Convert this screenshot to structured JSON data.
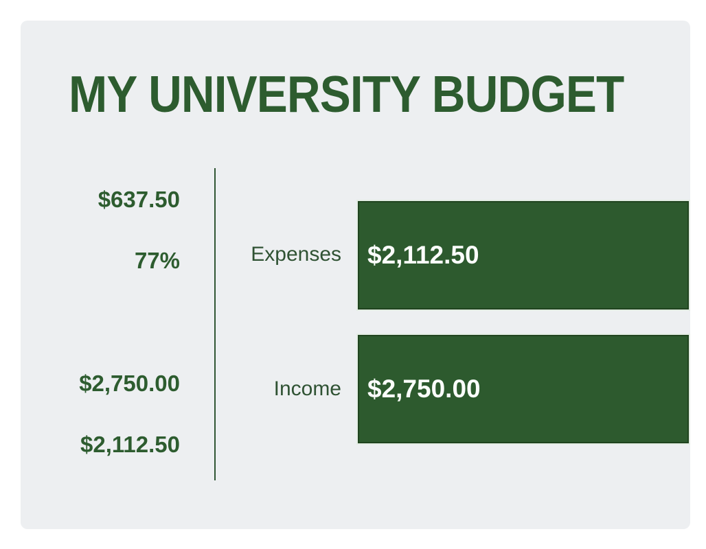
{
  "page": {
    "title": "MY UNIVERSITY BUDGET"
  },
  "stats": {
    "values": [
      "$637.50",
      "77%",
      "$2,750.00",
      "$2,112.50"
    ]
  },
  "chart_data": {
    "type": "bar",
    "orientation": "horizontal",
    "title": "MY UNIVERSITY BUDGET",
    "categories": [
      "Expenses",
      "Income"
    ],
    "values": [
      2112.5,
      2750.0
    ],
    "value_labels": [
      "$2,112.50",
      "$2,750.00"
    ],
    "side_stats": {
      "remaining": "$637.50",
      "percent_of_income_spent": "77%",
      "income": "$2,750.00",
      "expenses": "$2,112.50"
    },
    "legend": "none",
    "axes_visible": false,
    "gridlines": false,
    "bars_equal_visual_width": true,
    "value_labels_inside_bars": true
  },
  "colors": {
    "page_bg": "#ffffff",
    "panel_bg": "#edeff1",
    "accent_green": "#2d5c2f",
    "label_green": "#2f5233",
    "bar_fill": "#2d5a2e",
    "bar_border": "#20441f",
    "bar_value_text": "#fbfdfb",
    "divider_green": "#2f5534"
  }
}
